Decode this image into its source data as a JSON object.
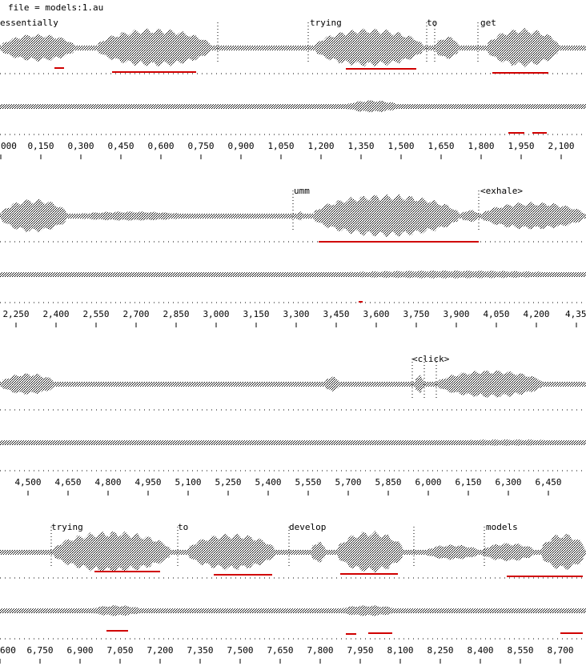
{
  "header": {
    "file": "file = models:1.au"
  },
  "strips": [
    {
      "words": [
        "essentially",
        "trying",
        "to",
        "get"
      ],
      "ticks": [
        "000",
        "0,150",
        "0,300",
        "0,450",
        "0,600",
        "0,750",
        "0,900",
        "1,050",
        "1,200",
        "1,350",
        "1,500",
        "1,650",
        "1,800",
        "1,950",
        "2,100"
      ]
    },
    {
      "words": [
        "umm",
        "<exhale>"
      ],
      "ticks": [
        "2,250",
        "2,400",
        "2,550",
        "2,700",
        "2,850",
        "3,000",
        "3,150",
        "3,300",
        "3,450",
        "3,600",
        "3,750",
        "3,900",
        "4,050",
        "4,200",
        "4,35"
      ]
    },
    {
      "words": [
        "<click>"
      ],
      "ticks": [
        "4,500",
        "4,650",
        "4,800",
        "4,950",
        "5,100",
        "5,250",
        "5,400",
        "5,550",
        "5,700",
        "5,850",
        "6,000",
        "6,150",
        "6,300",
        "6,450"
      ]
    },
    {
      "words": [
        "trying",
        "to",
        "develop",
        "models"
      ],
      "ticks": [
        "600",
        "6,750",
        "6,900",
        "7,050",
        "7,200",
        "7,350",
        "7,500",
        "7,650",
        "7,800",
        "7,950",
        "8,100",
        "8,250",
        "8,400",
        "8,550",
        "8,700"
      ]
    }
  ]
}
